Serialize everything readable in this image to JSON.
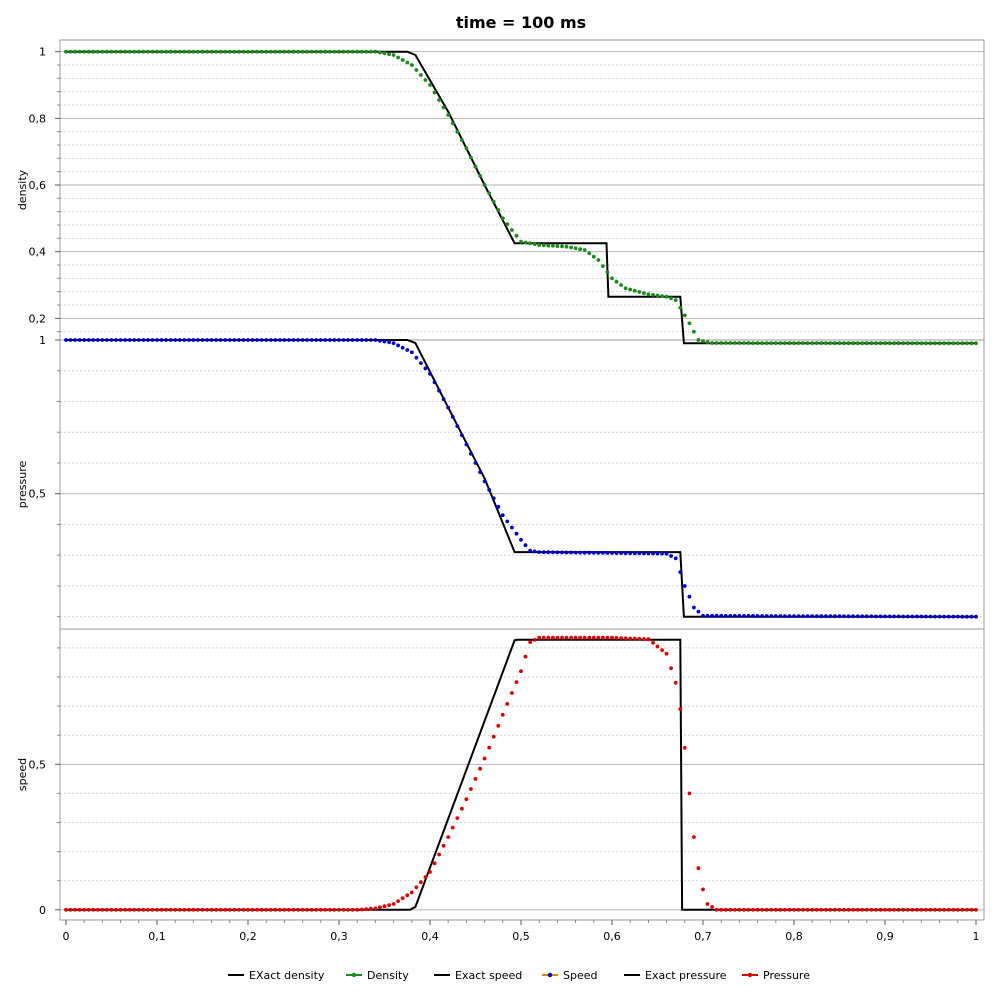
{
  "chart_data": {
    "type": "line",
    "title": "time = 100 ms",
    "xlim": [
      0,
      1
    ],
    "x_ticks": [
      "0",
      "0,1",
      "0,2",
      "0,3",
      "0,4",
      "0,5",
      "0,6",
      "0,7",
      "0,8",
      "0,9",
      "1"
    ],
    "panels": [
      {
        "ylabel": "density",
        "ylim": [
          0.135,
          1.035
        ],
        "y_ticks": [
          {
            "value": 1,
            "label": "1"
          },
          {
            "value": 0.8,
            "label": "0,8"
          },
          {
            "value": 0.6,
            "label": "0,6"
          },
          {
            "value": 0.4,
            "label": "0,4"
          },
          {
            "value": 0.2,
            "label": "0,2"
          }
        ],
        "exact": {
          "name": "EXact density",
          "color": "#000000",
          "points": [
            [
              0.0,
              1.0
            ],
            [
              0.375,
              1.0
            ],
            [
              0.384,
              0.99
            ],
            [
              0.42,
              0.82
            ],
            [
              0.46,
              0.6
            ],
            [
              0.493,
              0.425
            ],
            [
              0.594,
              0.425
            ],
            [
              0.596,
              0.265
            ],
            [
              0.675,
              0.265
            ],
            [
              0.679,
              0.125
            ],
            [
              1.0,
              0.125
            ]
          ]
        },
        "numeric": {
          "name": "Density",
          "color": "#1a8a1a",
          "points": [
            [
              0.0,
              1.0
            ],
            [
              0.34,
              1.0
            ],
            [
              0.36,
              0.99
            ],
            [
              0.38,
              0.96
            ],
            [
              0.4,
              0.9
            ],
            [
              0.42,
              0.81
            ],
            [
              0.44,
              0.71
            ],
            [
              0.46,
              0.6
            ],
            [
              0.48,
              0.5
            ],
            [
              0.5,
              0.43
            ],
            [
              0.52,
              0.42
            ],
            [
              0.55,
              0.415
            ],
            [
              0.57,
              0.405
            ],
            [
              0.585,
              0.375
            ],
            [
              0.6,
              0.32
            ],
            [
              0.615,
              0.29
            ],
            [
              0.64,
              0.272
            ],
            [
              0.66,
              0.265
            ],
            [
              0.67,
              0.255
            ],
            [
              0.682,
              0.2
            ],
            [
              0.695,
              0.135
            ],
            [
              0.71,
              0.126
            ],
            [
              1.0,
              0.125
            ]
          ]
        }
      },
      {
        "ylabel": "pressure",
        "ylim": [
          0.06,
          1.0
        ],
        "y_ticks": [
          {
            "value": 1,
            "label": "1"
          },
          {
            "value": 0.5,
            "label": "0,5"
          }
        ],
        "exact": {
          "name": "Exact pressure",
          "color": "#000000",
          "points": [
            [
              0.0,
              1.0
            ],
            [
              0.375,
              1.0
            ],
            [
              0.384,
              0.99
            ],
            [
              0.42,
              0.78
            ],
            [
              0.46,
              0.55
            ],
            [
              0.493,
              0.31
            ],
            [
              0.675,
              0.31
            ],
            [
              0.679,
              0.1
            ],
            [
              1.0,
              0.1
            ]
          ]
        },
        "numeric": {
          "name": "Speed",
          "color": "#0000d0",
          "points": [
            [
              0.0,
              1.0
            ],
            [
              0.34,
              1.0
            ],
            [
              0.36,
              0.99
            ],
            [
              0.38,
              0.96
            ],
            [
              0.4,
              0.89
            ],
            [
              0.42,
              0.78
            ],
            [
              0.44,
              0.66
            ],
            [
              0.46,
              0.54
            ],
            [
              0.48,
              0.43
            ],
            [
              0.5,
              0.35
            ],
            [
              0.51,
              0.315
            ],
            [
              0.52,
              0.31
            ],
            [
              0.66,
              0.305
            ],
            [
              0.67,
              0.29
            ],
            [
              0.68,
              0.2
            ],
            [
              0.69,
              0.13
            ],
            [
              0.7,
              0.103
            ],
            [
              1.0,
              0.1
            ]
          ]
        }
      },
      {
        "ylabel": "speed",
        "ylim": [
          -0.035,
          0.965
        ],
        "y_ticks": [
          {
            "value": 0.5,
            "label": "0,5"
          },
          {
            "value": 0,
            "label": "0"
          }
        ],
        "exact": {
          "name": "Exact speed",
          "color": "#000000",
          "points": [
            [
              0.0,
              0.0
            ],
            [
              0.378,
              0.0
            ],
            [
              0.384,
              0.01
            ],
            [
              0.493,
              0.926
            ],
            [
              0.496,
              0.928
            ],
            [
              0.675,
              0.928
            ],
            [
              0.677,
              0.0
            ],
            [
              1.0,
              0.0
            ]
          ]
        },
        "numeric": {
          "name": "Pressure",
          "color": "#e00000",
          "points": [
            [
              0.0,
              0.0
            ],
            [
              0.32,
              0.0
            ],
            [
              0.34,
              0.005
            ],
            [
              0.36,
              0.02
            ],
            [
              0.38,
              0.06
            ],
            [
              0.4,
              0.13
            ],
            [
              0.42,
              0.25
            ],
            [
              0.44,
              0.38
            ],
            [
              0.46,
              0.52
            ],
            [
              0.48,
              0.67
            ],
            [
              0.5,
              0.82
            ],
            [
              0.51,
              0.92
            ],
            [
              0.52,
              0.935
            ],
            [
              0.6,
              0.935
            ],
            [
              0.64,
              0.93
            ],
            [
              0.66,
              0.88
            ],
            [
              0.672,
              0.76
            ],
            [
              0.678,
              0.62
            ],
            [
              0.684,
              0.43
            ],
            [
              0.69,
              0.25
            ],
            [
              0.697,
              0.1
            ],
            [
              0.705,
              0.02
            ],
            [
              0.715,
              0.0
            ],
            [
              1.0,
              0.0
            ]
          ]
        }
      }
    ],
    "legend": {
      "placement": "bottom",
      "items": [
        {
          "name": "EXact density",
          "color": "#000000",
          "marker": false
        },
        {
          "name": "Density",
          "color": "#1a8a1a",
          "marker": true,
          "marker_color": "#1a8a1a"
        },
        {
          "name": "Exact speed",
          "color": "#000000",
          "marker": false
        },
        {
          "name": "Speed",
          "color": "#c89000",
          "marker": true,
          "marker_color": "#0000d0"
        },
        {
          "name": "Exact pressure",
          "color": "#000000",
          "marker": false
        },
        {
          "name": "Pressure",
          "color": "#e00000",
          "marker": true,
          "marker_color": "#e00000"
        }
      ]
    },
    "grid": true
  }
}
